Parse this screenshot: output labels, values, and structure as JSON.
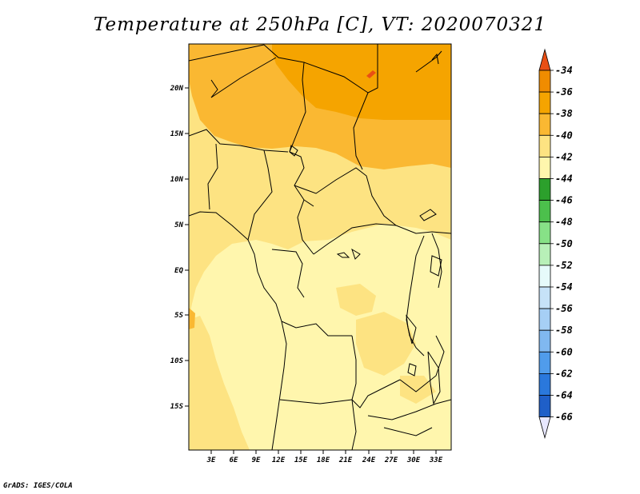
{
  "title": "Temperature at 250hPa [C], VT: 2020070321",
  "credit": "GrADS: IGES/COLA",
  "colors": {
    "c36": "#f08c00",
    "c38": "#f5a400",
    "c40": "#fab832",
    "c42": "#fde382",
    "c44": "#fff6ad",
    "c34": "#e94f14"
  },
  "map": {
    "lon_labels": [
      "3E",
      "6E",
      "9E",
      "12E",
      "15E",
      "18E",
      "21E",
      "24E",
      "27E",
      "30E",
      "33E"
    ],
    "lat_labels": [
      "20N",
      "15N",
      "10N",
      "5N",
      "EQ",
      "5S",
      "10S",
      "15S"
    ]
  },
  "colorbar": {
    "labels": [
      "-34",
      "-36",
      "-38",
      "-40",
      "-42",
      "-44",
      "-46",
      "-48",
      "-50",
      "-52",
      "-54",
      "-56",
      "-58",
      "-60",
      "-62",
      "-64",
      "-66"
    ],
    "colors": [
      "#e94f14",
      "#f08c00",
      "#f5a400",
      "#fab832",
      "#fde382",
      "#fff6ad",
      "#2ca02c",
      "#4cc04c",
      "#87e187",
      "#b8f0b8",
      "#e6fafa",
      "#c6e2f8",
      "#a6cff5",
      "#80b8f0",
      "#509ceb",
      "#2a78dc",
      "#1f5fc8",
      "#0c2a85"
    ],
    "top_color": "#e94f14",
    "bottom_color": "#e8e8ff"
  }
}
